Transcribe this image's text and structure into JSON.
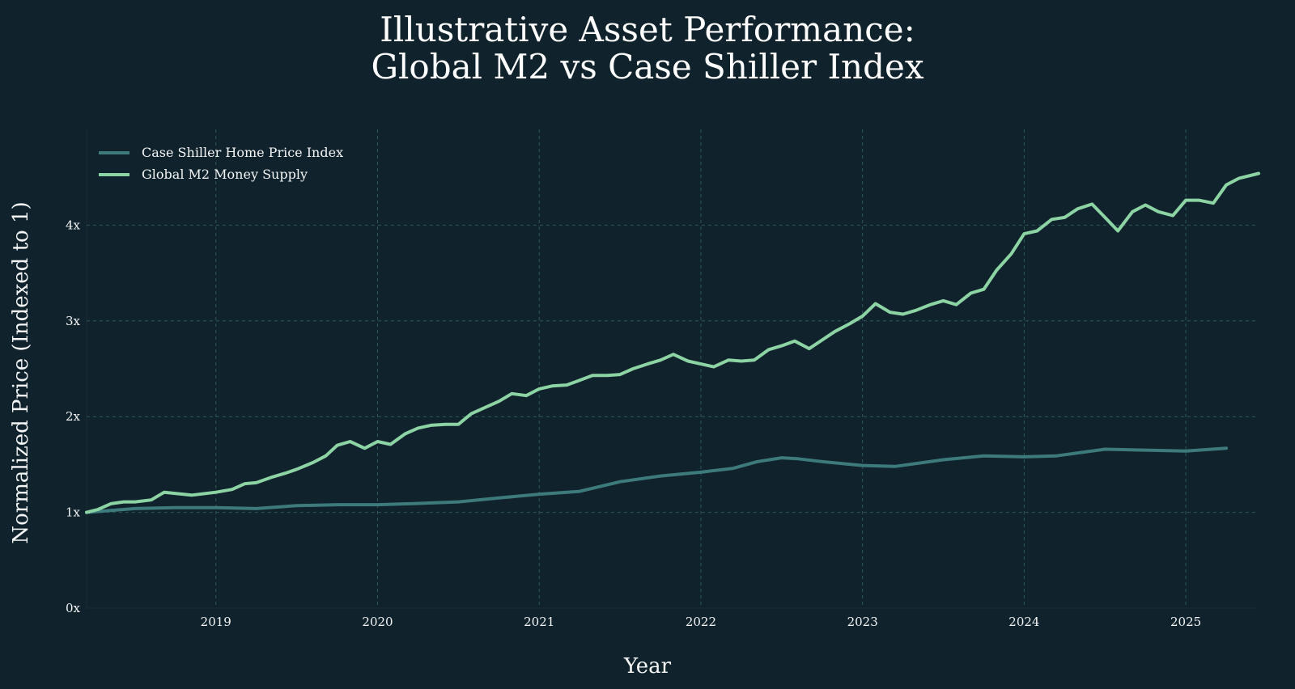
{
  "chart_data": {
    "type": "line",
    "title": "Illustrative Asset Performance:",
    "subtitle": "Global M2 vs Case Shiller Index",
    "xlabel": "Year",
    "ylabel": "Normalized Price (Indexed to 1)",
    "xlim": [
      2018.2,
      2025.45
    ],
    "ylim": [
      0,
      5
    ],
    "x_ticks": [
      2019,
      2020,
      2021,
      2022,
      2023,
      2024,
      2025
    ],
    "x_tick_labels": [
      "2019",
      "2020",
      "2021",
      "2022",
      "2023",
      "2024",
      "2025"
    ],
    "y_ticks": [
      0,
      1,
      2,
      3,
      4
    ],
    "y_tick_labels": [
      "0x",
      "1x",
      "2x",
      "3x",
      "4x"
    ],
    "grid": true,
    "legend_position": "top-left",
    "series": [
      {
        "name": "Case Shiller Home Price Index",
        "color": "#3d7a7c",
        "x": [
          2018.2,
          2018.5,
          2018.75,
          2019.0,
          2019.25,
          2019.5,
          2019.75,
          2020.0,
          2020.2,
          2020.5,
          2020.75,
          2021.0,
          2021.25,
          2021.5,
          2021.75,
          2022.0,
          2022.2,
          2022.35,
          2022.5,
          2022.6,
          2022.75,
          2023.0,
          2023.2,
          2023.5,
          2023.75,
          2024.0,
          2024.2,
          2024.5,
          2024.75,
          2025.0,
          2025.25
        ],
        "values": [
          1.0,
          1.04,
          1.05,
          1.05,
          1.04,
          1.07,
          1.08,
          1.08,
          1.09,
          1.11,
          1.15,
          1.19,
          1.22,
          1.32,
          1.38,
          1.42,
          1.46,
          1.53,
          1.57,
          1.56,
          1.53,
          1.49,
          1.48,
          1.55,
          1.59,
          1.58,
          1.59,
          1.66,
          1.65,
          1.64,
          1.67
        ]
      },
      {
        "name": "Global M2 Money Supply",
        "color": "#8dd4a4",
        "x": [
          2018.2,
          2018.27,
          2018.35,
          2018.43,
          2018.5,
          2018.6,
          2018.68,
          2018.85,
          2019.0,
          2019.1,
          2019.18,
          2019.25,
          2019.35,
          2019.43,
          2019.5,
          2019.6,
          2019.68,
          2019.75,
          2019.83,
          2019.92,
          2020.0,
          2020.08,
          2020.17,
          2020.25,
          2020.33,
          2020.42,
          2020.5,
          2020.58,
          2020.67,
          2020.75,
          2020.83,
          2020.92,
          2021.0,
          2021.08,
          2021.17,
          2021.25,
          2021.33,
          2021.42,
          2021.5,
          2021.58,
          2021.67,
          2021.75,
          2021.83,
          2021.92,
          2022.0,
          2022.08,
          2022.17,
          2022.25,
          2022.33,
          2022.42,
          2022.5,
          2022.58,
          2022.67,
          2022.75,
          2022.83,
          2022.92,
          2023.0,
          2023.08,
          2023.17,
          2023.25,
          2023.33,
          2023.42,
          2023.5,
          2023.58,
          2023.67,
          2023.75,
          2023.83,
          2023.92,
          2024.0,
          2024.08,
          2024.17,
          2024.25,
          2024.33,
          2024.42,
          2024.5,
          2024.58,
          2024.67,
          2024.75,
          2024.83,
          2024.92,
          2025.0,
          2025.08,
          2025.17,
          2025.25,
          2025.33,
          2025.45
        ],
        "values": [
          1.0,
          1.03,
          1.09,
          1.11,
          1.11,
          1.13,
          1.21,
          1.18,
          1.21,
          1.24,
          1.3,
          1.31,
          1.37,
          1.41,
          1.45,
          1.52,
          1.59,
          1.7,
          1.74,
          1.67,
          1.74,
          1.71,
          1.82,
          1.88,
          1.91,
          1.92,
          1.92,
          2.03,
          2.1,
          2.16,
          2.24,
          2.22,
          2.29,
          2.32,
          2.33,
          2.38,
          2.43,
          2.43,
          2.44,
          2.5,
          2.55,
          2.59,
          2.65,
          2.58,
          2.55,
          2.52,
          2.59,
          2.58,
          2.59,
          2.7,
          2.74,
          2.79,
          2.71,
          2.8,
          2.89,
          2.97,
          3.05,
          3.18,
          3.09,
          3.07,
          3.11,
          3.17,
          3.21,
          3.17,
          3.29,
          3.33,
          3.53,
          3.7,
          3.91,
          3.94,
          4.06,
          4.08,
          4.17,
          4.22,
          4.08,
          3.94,
          4.14,
          4.21,
          4.14,
          4.1,
          4.26,
          4.26,
          4.23,
          4.42,
          4.49,
          4.54
        ]
      }
    ]
  }
}
